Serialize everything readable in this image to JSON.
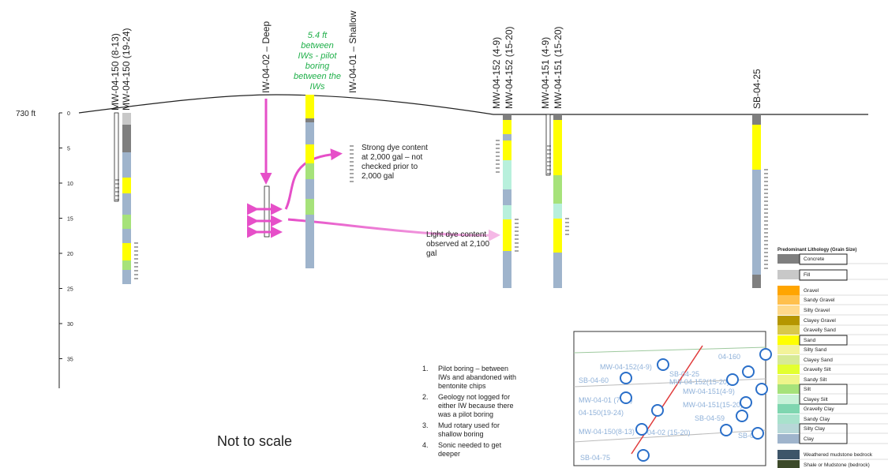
{
  "elevation_label": "730 ft",
  "depth_axis": {
    "ticks": [
      0,
      5,
      10,
      15,
      20,
      25,
      30,
      35
    ]
  },
  "well_labels": [
    "MW-04-150 (8-13)",
    "MW-04-150 (19-24)",
    "IW-04-02 – Deep",
    "IW-04-01 – Shallow",
    "MW-04-152 (4-9)",
    "MW-04-152 (15-20)",
    "MW-04-151 (4-9)",
    "MW-04-151 (15-20)",
    "SB-04-25"
  ],
  "annotations": {
    "spacing": [
      "5.4 ft",
      "between",
      "IWs - pilot",
      "boring",
      "between the",
      "IWs"
    ],
    "strong_dye": [
      "Strong dye content",
      "at 2,000 gal – not",
      "checked prior to",
      "2,000 gal"
    ],
    "light_dye": [
      "Light dye content",
      "observed at 2,100",
      "gal"
    ]
  },
  "notes": [
    {
      "number": "1.",
      "lines": [
        "Pilot boring – between",
        "IWs and abandoned with",
        "bentonite chips"
      ]
    },
    {
      "number": "2.",
      "lines": [
        "Geology not logged for",
        "either IW because there",
        "was a pilot boring"
      ]
    },
    {
      "number": "3.",
      "lines": [
        "Mud rotary used for",
        "shallow boring"
      ]
    },
    {
      "number": "4.",
      "lines": [
        "Sonic needed to get",
        "deeper"
      ]
    }
  ],
  "scale_note": "Not to scale",
  "legend": {
    "title": "Predominant Lithology (Grain Size)",
    "items": [
      "Concrete",
      "Fill",
      "Gravel",
      "Sandy Gravel",
      "Silty Gravel",
      "Clayey Gravel",
      "Gravelly Sand",
      "Sand",
      "Silty Sand",
      "Clayey Sand",
      "Gravelly Silt",
      "Sandy Silt",
      "Silt",
      "Clayey Silt",
      "Gravelly Clay",
      "Sandy Clay",
      "Silty Clay",
      "Clay",
      "Weathered mudstone bedrock",
      "Shale or Mudstone (bedrock)"
    ]
  },
  "map_labels": [
    "04-160",
    "MW-04-152(4-9)",
    "SB-04-25",
    "SB-04-60",
    "MW-04-152(15-20)",
    "MW-04-151(4-9)",
    "MW-04-01 (7-12)",
    "MW-04-151(15-20)",
    "04-150(19-24)",
    "SB-04-59",
    "MW-04-150(8-13)",
    "04-02 (15-20)",
    "SB-04",
    "SB-04-75"
  ]
}
